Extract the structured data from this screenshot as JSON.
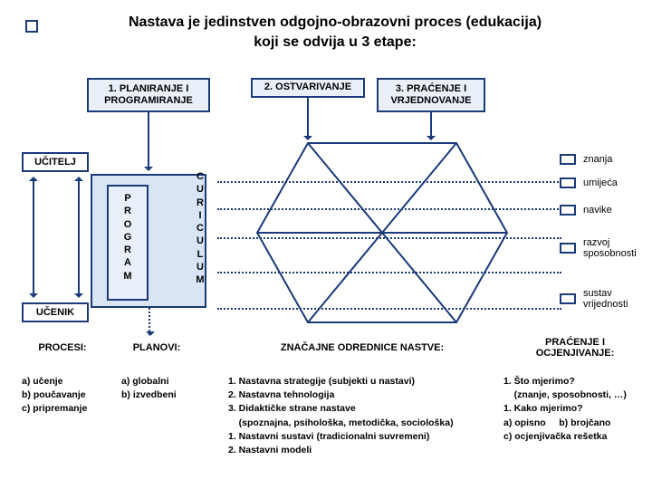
{
  "colors": {
    "line": "#1a3a7a",
    "box_fill": "#eaf0fa",
    "panel_fill": "#d9e4f5",
    "bg": "#ffffff"
  },
  "fonts": {
    "title_pt": 16,
    "box_pt": 11,
    "body_pt": 10.5
  },
  "title": "Nastava je jedinstven odgojno-obrazovni proces (edukacija)\nkoji se odvija u 3 etape:",
  "stages": {
    "s1": "1. PLANIRANJE I PROGRAMIRANJE",
    "s2": "2. OSTVARIVANJE",
    "s3": "3. PRAĆENJE I VRJEDNOVANJE"
  },
  "roles": {
    "teacher": "UČITELJ",
    "student": "UČENIK"
  },
  "vertical": {
    "program": "P\nR\nO\nG\nR\nA\nM",
    "curic": "C\nU\nR\nI\nC\nU\nL\nU\nM"
  },
  "legend": {
    "l1": "znanja",
    "l2": "umijeća",
    "l3": "navike",
    "l4": "razvoj sposobnosti",
    "l5": "sustav vrijednosti"
  },
  "headers": {
    "h1": "PROCESI:",
    "h2": "PLANOVI:",
    "h3": "ZNAČAJNE ODREDNICE NASTVE:",
    "h4": "PRAĆENJE I OCJENJIVANJE:"
  },
  "cols": {
    "c1": "a) učenje\nb) poučavanje\nc) pripremanje",
    "c2": "a) globalni\nb) izvedbeni",
    "c3": "1. Nastavna strategije (subjekti u nastavi)\n2. Nastavna tehnologija\n3. Didaktičke strane nastave\n    (spoznajna, psihološka, metodička, sociološka)\n1. Nastavni sustavi (tradicionalni suvremeni)\n2. Nastavni modeli",
    "c4": "1. Što mjerimo?\n    (znanje, sposobnosti, …)\n1. Kako mjerimo?\na) opisno     b) brojčano\nc) ocjenjivačka rešetka"
  },
  "hex": {
    "stroke": "#1a3a7a",
    "stroke_width": 2
  }
}
